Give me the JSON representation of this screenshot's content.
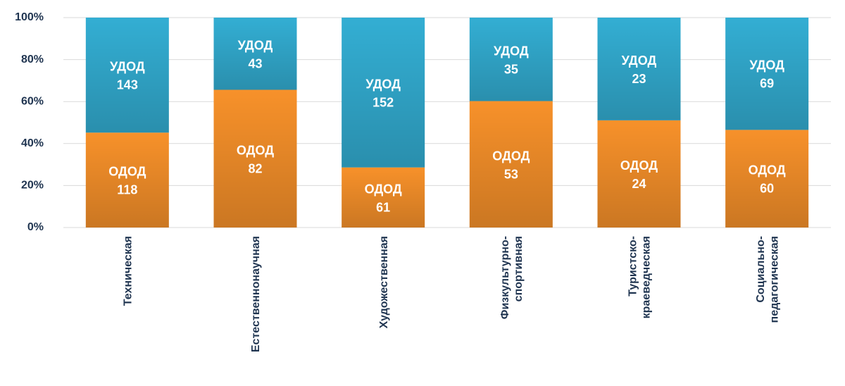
{
  "chart_data": {
    "type": "bar",
    "stacked": "percent",
    "categories": [
      "Техническая",
      "Естественнонаучная",
      "Художественная",
      "Физкультурно-\nспортивная",
      "Туристско-\nкраеведческая",
      "Социально-\nпедагогическая"
    ],
    "series": [
      {
        "name": "ОДОД",
        "color": "#f7912a",
        "values": [
          118,
          82,
          61,
          53,
          24,
          60
        ]
      },
      {
        "name": "УДОД",
        "color": "#33aed3",
        "values": [
          143,
          43,
          152,
          35,
          23,
          69
        ]
      }
    ],
    "ylim": [
      0,
      100
    ],
    "yticks": [
      {
        "value": 0,
        "label": "0%"
      },
      {
        "value": 20,
        "label": "20%"
      },
      {
        "value": 40,
        "label": "40%"
      },
      {
        "value": 60,
        "label": "60%"
      },
      {
        "value": 80,
        "label": "80%"
      },
      {
        "value": 100,
        "label": "100%"
      }
    ],
    "grid": true
  }
}
